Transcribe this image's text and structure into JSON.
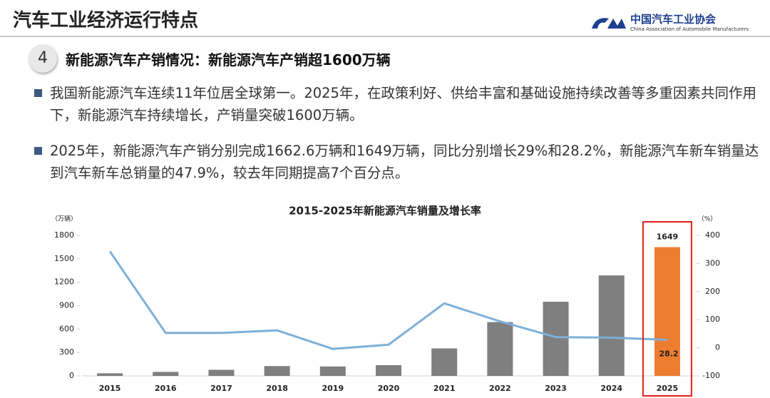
{
  "header": {
    "title": "汽车工业经济运行特点",
    "logo": "中国汽车工业协会",
    "logo_en": "China Association of Automobile Manufacturers"
  },
  "section": {
    "number": "4",
    "heading": "新能源汽车产销情况：新能源汽车产销超1600万辆"
  },
  "bullets": [
    "我国新能源汽车连续11年位居全球第一。2025年，在政策利好、供给丰富和基础设施持续改善等多重因素共同作用下，新能源汽车持续增长，产销量突破1600万辆。",
    "2025年，新能源汽车产销分别完成1662.6万辆和1649万辆，同比分别增长29%和28.2%，新能源汽车新车销量达到汽车新车总销量的47.9%，较去年同期提高7个百分点。"
  ],
  "chart_data": {
    "type": "bar-line",
    "title": "2015-2025年新能源汽车销量及增长率",
    "y_label": "（万辆）",
    "y2_label": "（%）",
    "categories": [
      "2015",
      "2016",
      "2017",
      "2018",
      "2019",
      "2020",
      "2021",
      "2022",
      "2023",
      "2024",
      "2025"
    ],
    "series": [
      {
        "type": "bar",
        "color": "#7f7f7f",
        "values": [
          33,
          51,
          78,
          126,
          121,
          137,
          352,
          689,
          950,
          1287,
          1649
        ]
      },
      {
        "type": "line",
        "axis": "y2",
        "color": "#7fb0d8",
        "values": [
          343,
          53,
          53,
          62,
          -4,
          11,
          158,
          94,
          38,
          36,
          28.2
        ]
      }
    ],
    "highlight": {
      "index": 10,
      "color": "#ed7d31",
      "box_color": "#e0201a"
    },
    "ylim": [
      0,
      1800
    ],
    "yticks": [
      0,
      300,
      600,
      900,
      1200,
      1500,
      1800
    ],
    "y2lim": [
      -100,
      400
    ],
    "y2ticks": [
      -100,
      0,
      100,
      200,
      300,
      400
    ]
  }
}
